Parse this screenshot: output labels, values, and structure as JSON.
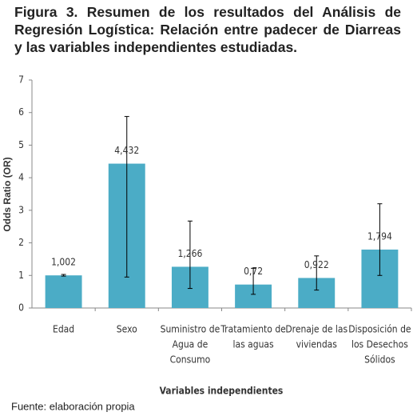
{
  "chart_data": {
    "type": "bar",
    "title": "Figura 3. Resumen de los resultados del Análisis de Regresión Logística: Relación entre padecer de Diarreas y las variables independientes estudiadas.",
    "y_label": "Odds Ratio (OR)",
    "x_label": "Variables independientes",
    "source": "Fuente: elaboración propia",
    "categories": [
      [
        "Edad"
      ],
      [
        "Sexo"
      ],
      [
        "Suministro de",
        "Agua de",
        "Consumo"
      ],
      [
        "Tratamiento de",
        "las aguas"
      ],
      [
        "Drenaje de las",
        "viviendas"
      ],
      [
        "Disposición de",
        "los Desechos",
        "Sólidos"
      ]
    ],
    "values": [
      1.002,
      4.432,
      1.266,
      0.72,
      0.922,
      1.794
    ],
    "value_labels": [
      "1,002",
      "4,432",
      "1,266",
      "0,72",
      "0,922",
      "1,794"
    ],
    "error_lower": [
      0.98,
      0.95,
      0.6,
      0.42,
      0.55,
      1.0
    ],
    "error_upper": [
      1.03,
      5.88,
      2.67,
      1.22,
      1.6,
      3.2
    ],
    "color": "#4bacc6",
    "ylim": [
      0,
      7
    ],
    "yticks": [
      0,
      1,
      2,
      3,
      4,
      5,
      6,
      7
    ],
    "grid": false
  }
}
